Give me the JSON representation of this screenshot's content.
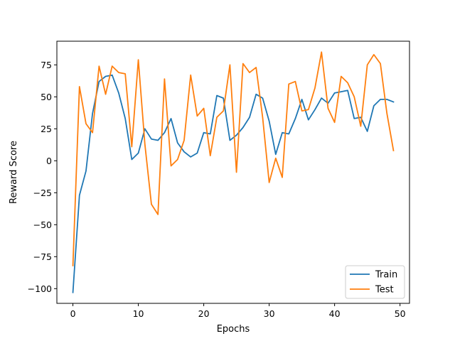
{
  "chart_data": {
    "type": "line",
    "xlabel": "Epochs",
    "ylabel": "Reward Score",
    "xlim": [
      -2.45,
      51.45
    ],
    "ylim": [
      -111.5,
      93.5
    ],
    "xticks": [
      0,
      10,
      20,
      30,
      40,
      50
    ],
    "yticks": [
      -100,
      -75,
      -50,
      -25,
      0,
      25,
      50,
      75
    ],
    "ytick_labels": [
      "−100",
      "−75",
      "−50",
      "−25",
      "0",
      "25",
      "50",
      "75"
    ],
    "grid": false,
    "legend_position": "lower-right",
    "x": [
      0,
      1,
      2,
      3,
      4,
      5,
      6,
      7,
      8,
      9,
      10,
      11,
      12,
      13,
      14,
      15,
      16,
      17,
      18,
      19,
      20,
      21,
      22,
      23,
      24,
      25,
      26,
      27,
      28,
      29,
      30,
      31,
      32,
      33,
      34,
      35,
      36,
      37,
      38,
      39,
      40,
      41,
      42,
      43,
      44,
      45,
      46,
      47,
      48,
      49
    ],
    "series": [
      {
        "name": "Train",
        "color": "#1f77b4",
        "values": [
          -103,
          -27,
          -8,
          37,
          62,
          66,
          67,
          53,
          33,
          1,
          6,
          25,
          17,
          16,
          22,
          33,
          14,
          7,
          3,
          6,
          22,
          21,
          51,
          49,
          16,
          20,
          26,
          34,
          52,
          49,
          31,
          5,
          22,
          21,
          33,
          48,
          32,
          40,
          49,
          45,
          53,
          54,
          55,
          33,
          34,
          23,
          43,
          48,
          48,
          46
        ]
      },
      {
        "name": "Test",
        "color": "#ff7f0e",
        "values": [
          -82,
          58,
          29,
          22,
          74,
          52,
          74,
          69,
          68,
          11,
          79,
          13,
          -34,
          -42,
          64,
          -4,
          1,
          16,
          67,
          35,
          41,
          4,
          34,
          39,
          75,
          -9,
          76,
          69,
          73,
          34,
          -17,
          2,
          -13,
          60,
          62,
          39,
          40,
          57,
          85,
          41,
          30,
          66,
          61,
          50,
          27,
          75,
          83,
          76,
          37,
          8
        ]
      }
    ]
  }
}
